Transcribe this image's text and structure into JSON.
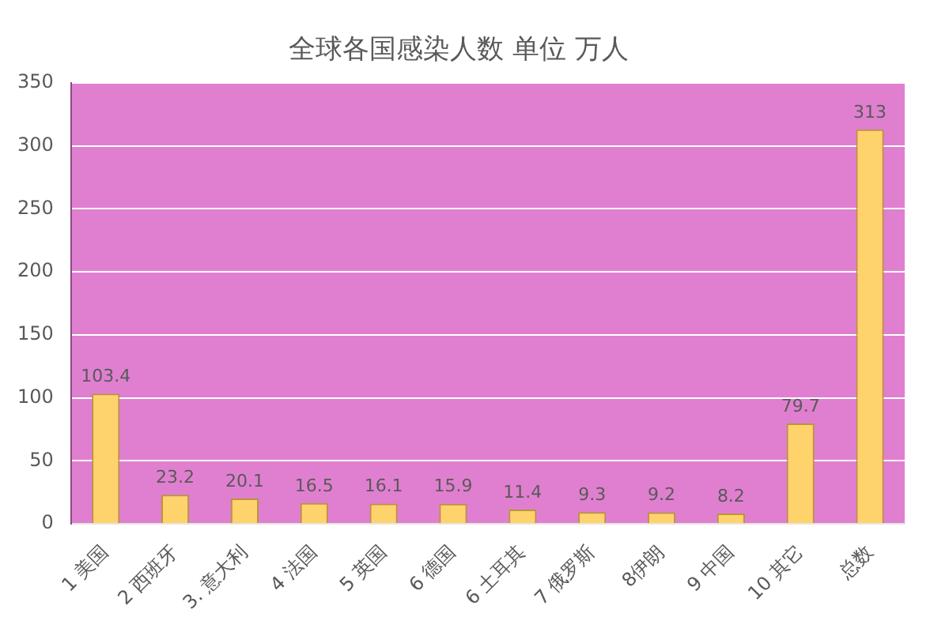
{
  "chart_data": {
    "type": "bar",
    "title": "全球各国感染人数 单位 万人",
    "categories": [
      "1 美国",
      "2 西班牙",
      "3. 意大利",
      "4 法国",
      "5 英国",
      "6 德国",
      "6 土耳其",
      "7 俄罗斯",
      "8伊朗",
      "9 中国",
      "10 其它",
      "总数"
    ],
    "values": [
      103.4,
      23.2,
      20.1,
      16.5,
      16.1,
      15.9,
      11.4,
      9.3,
      9.2,
      8.2,
      79.7,
      313
    ],
    "color": "#ffd36b",
    "ylim": [
      0,
      350
    ],
    "yticks": [
      0,
      50,
      100,
      150,
      200,
      250,
      300,
      350
    ],
    "grid": "y",
    "data_labels": true,
    "legend": false
  }
}
